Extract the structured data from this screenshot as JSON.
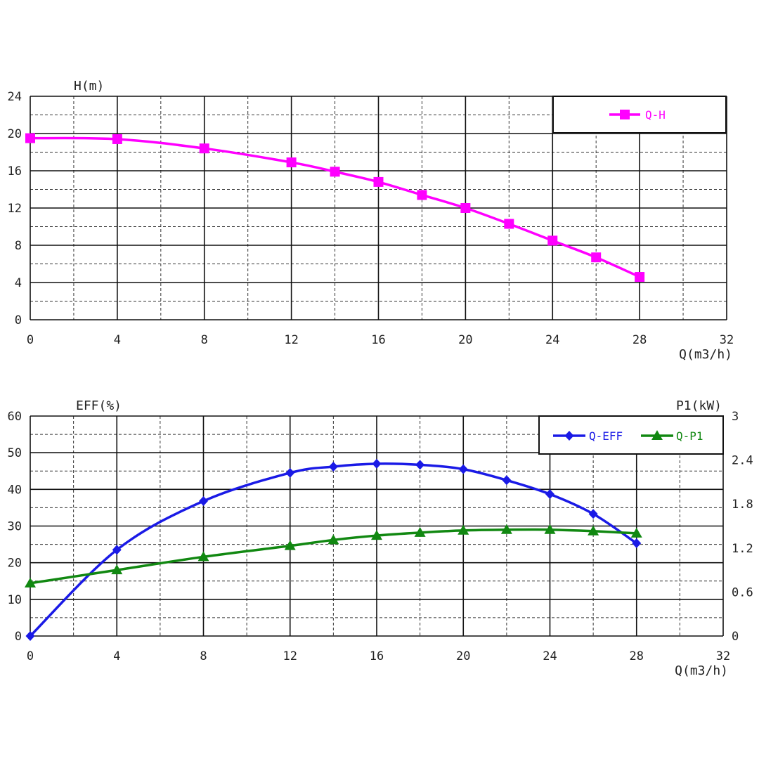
{
  "chart_data": [
    {
      "type": "line",
      "ylabel": "H(m)",
      "xlabel": "Q(m3/h)",
      "xlim": [
        0,
        32
      ],
      "ylim": [
        0,
        24
      ],
      "x_ticks": [
        0,
        4,
        8,
        12,
        16,
        20,
        24,
        28,
        32
      ],
      "y_ticks": [
        0,
        4,
        8,
        12,
        16,
        20,
        24
      ],
      "grid": true,
      "legend_position": "top-right",
      "series": [
        {
          "name": "Q-H",
          "color": "#ff00ff",
          "marker": "square",
          "x": [
            0,
            4,
            8,
            12,
            14,
            16,
            18,
            20,
            22,
            24,
            26,
            28
          ],
          "y": [
            19.5,
            19.4,
            18.4,
            16.9,
            15.9,
            14.8,
            13.4,
            12.0,
            10.3,
            8.5,
            6.7,
            4.6
          ]
        }
      ]
    },
    {
      "type": "line",
      "ylabel": "EFF(%)",
      "y2label": "P1(kW)",
      "xlabel": "Q(m3/h)",
      "xlim": [
        0,
        32
      ],
      "ylim": [
        0,
        60
      ],
      "y2lim": [
        0,
        3
      ],
      "x_ticks": [
        0,
        4,
        8,
        12,
        16,
        20,
        24,
        28,
        32
      ],
      "y_ticks": [
        0,
        10,
        20,
        30,
        40,
        50,
        60
      ],
      "y2_ticks": [
        "0",
        "0.6",
        "1.2",
        "1.8",
        "2.4",
        "3"
      ],
      "grid": true,
      "legend_position": "top-right",
      "series": [
        {
          "name": "Q-EFF",
          "color": "#1a1ae6",
          "marker": "diamond",
          "axis": "left",
          "x": [
            0,
            4,
            8,
            12,
            14,
            16,
            18,
            20,
            22,
            24,
            26,
            28
          ],
          "y": [
            0,
            23.5,
            36.8,
            44.5,
            46.2,
            47.0,
            46.7,
            45.5,
            42.5,
            38.7,
            33.3,
            25.3
          ]
        },
        {
          "name": "Q-P1",
          "color": "#118811",
          "marker": "triangle",
          "axis": "right",
          "x": [
            0,
            4,
            8,
            12,
            14,
            16,
            18,
            20,
            22,
            24,
            26,
            28
          ],
          "y": [
            0.72,
            0.9,
            1.08,
            1.23,
            1.31,
            1.37,
            1.41,
            1.44,
            1.45,
            1.45,
            1.43,
            1.4
          ]
        }
      ]
    }
  ]
}
